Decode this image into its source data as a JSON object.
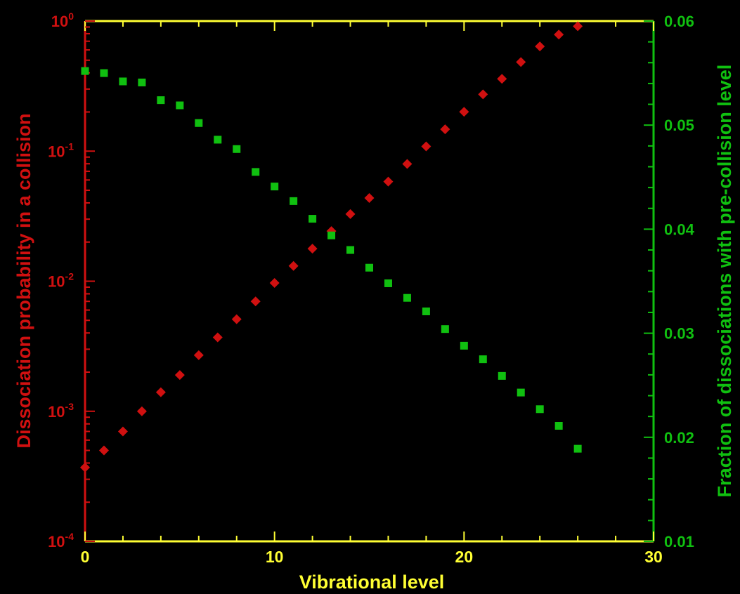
{
  "chart_data": {
    "type": "scatter",
    "title": "",
    "xlabel": "Vibrational level",
    "ylabel_left": "Dissociation probability in a collision",
    "ylabel_right": "Fraction of dissociations with pre-collision level",
    "xlim": [
      0,
      30
    ],
    "ylim_left": [
      0.0001,
      1
    ],
    "yscale_left": "log",
    "ylim_right": [
      0.01,
      0.06
    ],
    "yscale_right": "linear",
    "grid": false,
    "x_ticks": [
      "0",
      "10",
      "20",
      "30"
    ],
    "y_left_ticks": [
      {
        "base": "10",
        "exp": "-4",
        "value": 0.0001
      },
      {
        "base": "10",
        "exp": "-3",
        "value": 0.001
      },
      {
        "base": "10",
        "exp": "-2",
        "value": 0.01
      },
      {
        "base": "10",
        "exp": "-1",
        "value": 0.1
      },
      {
        "base": "10",
        "exp": "0",
        "value": 1
      }
    ],
    "y_right_ticks": [
      "0.01",
      "0.02",
      "0.03",
      "0.04",
      "0.05",
      "0.06"
    ],
    "series": [
      {
        "axis": "left",
        "marker": "diamond",
        "color": "#d01010",
        "x": [
          0,
          1,
          2,
          3,
          4,
          5,
          6,
          7,
          8,
          9,
          10,
          11,
          12,
          13,
          14,
          15,
          16,
          17,
          18,
          19,
          20,
          21,
          22,
          23,
          24,
          25,
          26
        ],
        "y": [
          0.00037,
          0.0005,
          0.0007,
          0.001,
          0.0014,
          0.0019,
          0.0027,
          0.0037,
          0.0051,
          0.007,
          0.0097,
          0.0131,
          0.0178,
          0.0243,
          0.0328,
          0.0436,
          0.0583,
          0.0797,
          0.1087,
          0.1473,
          0.2007,
          0.2734,
          0.3595,
          0.4844,
          0.6386,
          0.7877,
          0.9128
        ]
      },
      {
        "axis": "right",
        "marker": "square",
        "color": "#10c010",
        "x": [
          0,
          1,
          2,
          3,
          4,
          5,
          6,
          7,
          8,
          9,
          10,
          11,
          12,
          13,
          14,
          15,
          16,
          17,
          18,
          19,
          20,
          21,
          22,
          23,
          24,
          25,
          26
        ],
        "y": [
          0.0552,
          0.055,
          0.0542,
          0.0541,
          0.0524,
          0.0519,
          0.0502,
          0.0486,
          0.0477,
          0.0455,
          0.0441,
          0.0427,
          0.041,
          0.0394,
          0.038,
          0.0363,
          0.0348,
          0.0334,
          0.0321,
          0.0304,
          0.0288,
          0.0275,
          0.0259,
          0.0243,
          0.0227,
          0.0211,
          0.0189
        ]
      }
    ],
    "colors": {
      "background": "#000000",
      "frame": "#ffff33",
      "left_axis": "#d01010",
      "right_axis": "#10c010",
      "xlabel": "#ffff33"
    }
  }
}
